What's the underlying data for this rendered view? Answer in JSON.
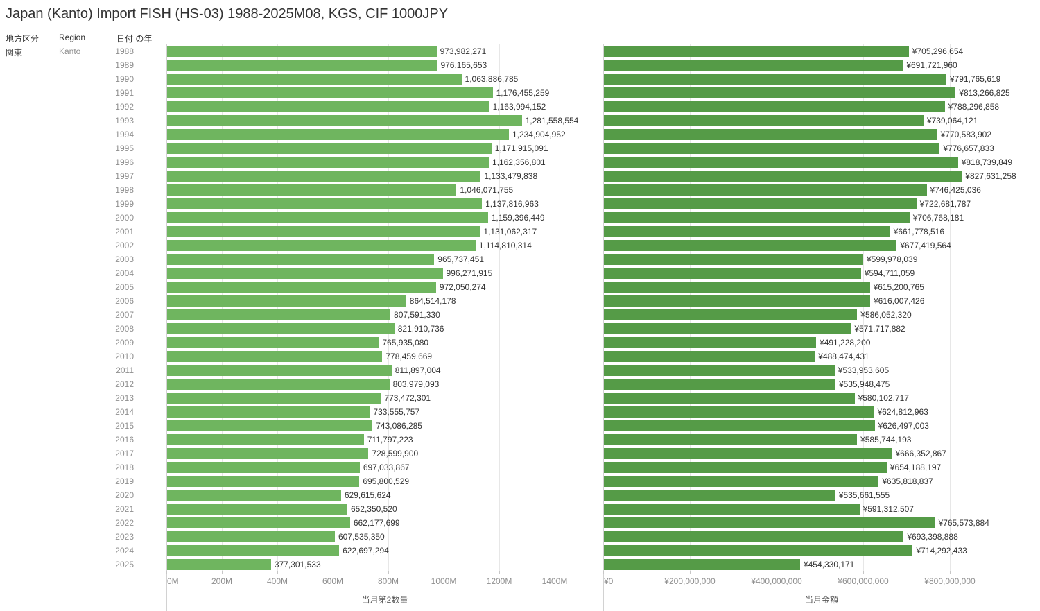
{
  "title": "Japan (Kanto) Import FISH (HS-03) 1988-2025M08, KGS, CIF 1000JPY",
  "headers": {
    "region_division": "地方区分",
    "region": "Region",
    "year": "日付 の年"
  },
  "row_values": {
    "region_division": "関東",
    "region": "Kanto"
  },
  "colors": {
    "quantity_bar": "#6fb55f",
    "amount_bar": "#559b47",
    "value_label": "#333333",
    "axis_text": "#8f8f8f",
    "gridline": "#e7e7e7"
  },
  "chart_data": [
    {
      "type": "bar",
      "orientation": "horizontal",
      "xlabel": "当月第2数量",
      "value_prefix": "",
      "bar_color": "#6fb55f",
      "xlim": [
        0,
        1575000000
      ],
      "grid": true,
      "ticks": [
        {
          "value": 0,
          "label": "0M"
        },
        {
          "value": 200000000,
          "label": "200M"
        },
        {
          "value": 400000000,
          "label": "400M"
        },
        {
          "value": 600000000,
          "label": "600M"
        },
        {
          "value": 800000000,
          "label": "800M"
        },
        {
          "value": 1000000000,
          "label": "1000M"
        },
        {
          "value": 1200000000,
          "label": "1200M"
        },
        {
          "value": 1400000000,
          "label": "1400M"
        }
      ],
      "categories": [
        "1988",
        "1989",
        "1990",
        "1991",
        "1992",
        "1993",
        "1994",
        "1995",
        "1996",
        "1997",
        "1998",
        "1999",
        "2000",
        "2001",
        "2002",
        "2003",
        "2004",
        "2005",
        "2006",
        "2007",
        "2008",
        "2009",
        "2010",
        "2011",
        "2012",
        "2013",
        "2014",
        "2015",
        "2016",
        "2017",
        "2018",
        "2019",
        "2020",
        "2021",
        "2022",
        "2023",
        "2024",
        "2025"
      ],
      "values": [
        973982271,
        976165653,
        1063886785,
        1176455259,
        1163994152,
        1281558554,
        1234904952,
        1171915091,
        1162356801,
        1133479838,
        1046071755,
        1137816963,
        1159396449,
        1131062317,
        1114810314,
        965737451,
        996271915,
        972050274,
        864514178,
        807591330,
        821910736,
        765935080,
        778459669,
        811897004,
        803979093,
        773472301,
        733555757,
        743086285,
        711797223,
        728599900,
        697033867,
        695800529,
        629615624,
        652350520,
        662177699,
        607535350,
        622697294,
        377301533
      ]
    },
    {
      "type": "bar",
      "orientation": "horizontal",
      "xlabel": "当月金額",
      "value_prefix": "¥",
      "bar_color": "#559b47",
      "xlim": [
        0,
        1008000000
      ],
      "grid": true,
      "ticks": [
        {
          "value": 0,
          "label": "¥0"
        },
        {
          "value": 200000000,
          "label": "¥200,000,000"
        },
        {
          "value": 400000000,
          "label": "¥400,000,000"
        },
        {
          "value": 600000000,
          "label": "¥600,000,000"
        },
        {
          "value": 800000000,
          "label": "¥800,000,000"
        },
        {
          "value": 1000000000,
          "label": ""
        }
      ],
      "categories": [
        "1988",
        "1989",
        "1990",
        "1991",
        "1992",
        "1993",
        "1994",
        "1995",
        "1996",
        "1997",
        "1998",
        "1999",
        "2000",
        "2001",
        "2002",
        "2003",
        "2004",
        "2005",
        "2006",
        "2007",
        "2008",
        "2009",
        "2010",
        "2011",
        "2012",
        "2013",
        "2014",
        "2015",
        "2016",
        "2017",
        "2018",
        "2019",
        "2020",
        "2021",
        "2022",
        "2023",
        "2024",
        "2025"
      ],
      "values": [
        705296654,
        691721960,
        791765619,
        813266825,
        788296858,
        739064121,
        770583902,
        776657833,
        818739849,
        827631258,
        746425036,
        722681787,
        706768181,
        661778516,
        677419564,
        599978039,
        594711059,
        615200765,
        616007426,
        586052320,
        571717882,
        491228200,
        488474431,
        533953605,
        535948475,
        580102717,
        624812963,
        626497003,
        585744193,
        666352867,
        654188197,
        635818837,
        535661555,
        591312507,
        765573884,
        693398888,
        714292433,
        454330171
      ]
    }
  ]
}
